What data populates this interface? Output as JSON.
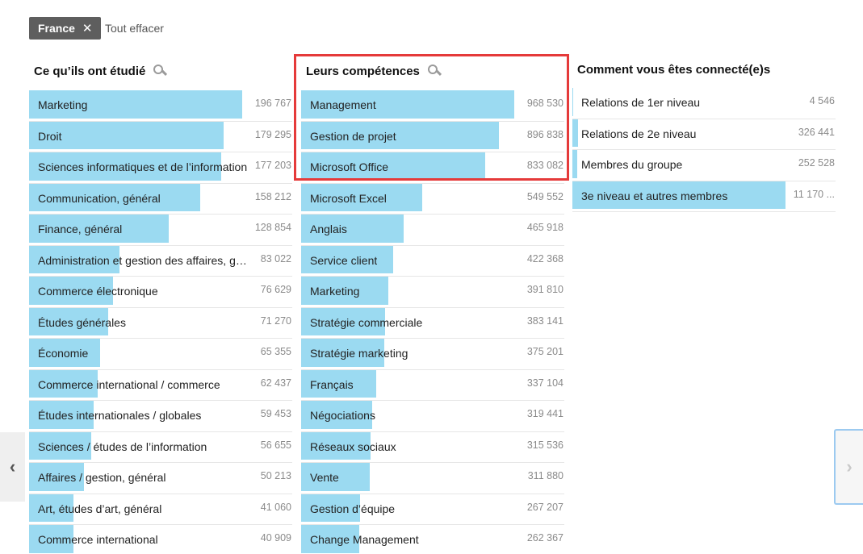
{
  "filter": {
    "chip_label": "France",
    "clear_label": "Tout effacer"
  },
  "columns": [
    {
      "title": "Ce qu’ils ont étudié",
      "rows": [
        {
          "label": "Marketing",
          "count": "196 767",
          "fill": 0.81
        },
        {
          "label": "Droit",
          "count": "179 295",
          "fill": 0.74
        },
        {
          "label": "Sciences informatiques et de l’information",
          "count": "177 203",
          "fill": 0.73
        },
        {
          "label": "Communication, général",
          "count": "158 212",
          "fill": 0.65
        },
        {
          "label": "Finance, général",
          "count": "128 854",
          "fill": 0.53
        },
        {
          "label": "Administration et gestion des affaires, général",
          "count": "83 022",
          "fill": 0.345
        },
        {
          "label": "Commerce électronique",
          "count": "76 629",
          "fill": 0.32
        },
        {
          "label": "Études générales",
          "count": "71 270",
          "fill": 0.3
        },
        {
          "label": "Économie",
          "count": "65 355",
          "fill": 0.27
        },
        {
          "label": "Commerce international / commerce",
          "count": "62 437",
          "fill": 0.26
        },
        {
          "label": "Études internationales / globales",
          "count": "59 453",
          "fill": 0.245
        },
        {
          "label": "Sciences / études de l’information",
          "count": "56 655",
          "fill": 0.235
        },
        {
          "label": "Affaires / gestion, général",
          "count": "50 213",
          "fill": 0.21
        },
        {
          "label": "Art, études d’art, général",
          "count": "41 060",
          "fill": 0.17
        },
        {
          "label": "Commerce international",
          "count": "40 909",
          "fill": 0.17
        }
      ]
    },
    {
      "title": "Leurs compétences",
      "rows": [
        {
          "label": "Management",
          "count": "968 530",
          "fill": 0.81
        },
        {
          "label": "Gestion de projet",
          "count": "896 838",
          "fill": 0.75
        },
        {
          "label": "Microsoft Office",
          "count": "833 082",
          "fill": 0.7
        },
        {
          "label": "Microsoft Excel",
          "count": "549 552",
          "fill": 0.46
        },
        {
          "label": "Anglais",
          "count": "465 918",
          "fill": 0.39
        },
        {
          "label": "Service client",
          "count": "422 368",
          "fill": 0.35
        },
        {
          "label": "Marketing",
          "count": "391 810",
          "fill": 0.33
        },
        {
          "label": "Stratégie commerciale",
          "count": "383 141",
          "fill": 0.32
        },
        {
          "label": "Stratégie marketing",
          "count": "375 201",
          "fill": 0.315
        },
        {
          "label": "Français",
          "count": "337 104",
          "fill": 0.285
        },
        {
          "label": "Négociations",
          "count": "319 441",
          "fill": 0.27
        },
        {
          "label": "Réseaux sociaux",
          "count": "315 536",
          "fill": 0.265
        },
        {
          "label": "Vente",
          "count": "311 880",
          "fill": 0.26
        },
        {
          "label": "Gestion d’équipe",
          "count": "267 207",
          "fill": 0.225
        },
        {
          "label": "Change Management",
          "count": "262 367",
          "fill": 0.22
        }
      ]
    },
    {
      "title": "Comment vous êtes connecté(e)s",
      "rows": [
        {
          "label": "Relations de 1er niveau",
          "count": "4 546",
          "fill": 0.004
        },
        {
          "label": "Relations de 2e niveau",
          "count": "326 441",
          "fill": 0.02
        },
        {
          "label": "Membres du groupe",
          "count": "252 528",
          "fill": 0.017
        },
        {
          "label": "3e niveau et autres membres",
          "count": "11 170 ...",
          "fill": 0.81
        }
      ]
    }
  ],
  "nav": {
    "prev_icon": "chevron-left-icon",
    "next_icon": "chevron-right-icon",
    "prev_glyph": "‹",
    "next_glyph": "›"
  },
  "colors": {
    "bar": "#9bdaf1",
    "highlight": "#e53a3a",
    "chip": "#5e5e5e"
  }
}
